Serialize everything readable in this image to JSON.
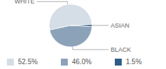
{
  "chart_data": {
    "type": "pie",
    "categories": [
      "WHITE",
      "BLACK",
      "ASIAN"
    ],
    "values": [
      52.5,
      46.0,
      1.5
    ],
    "value_labels": [
      "52.5%",
      "46.0%",
      "1.5%"
    ],
    "colors": [
      "#d5dde7",
      "#8ba2b9",
      "#2f5d88"
    ],
    "legend": "bottom"
  }
}
